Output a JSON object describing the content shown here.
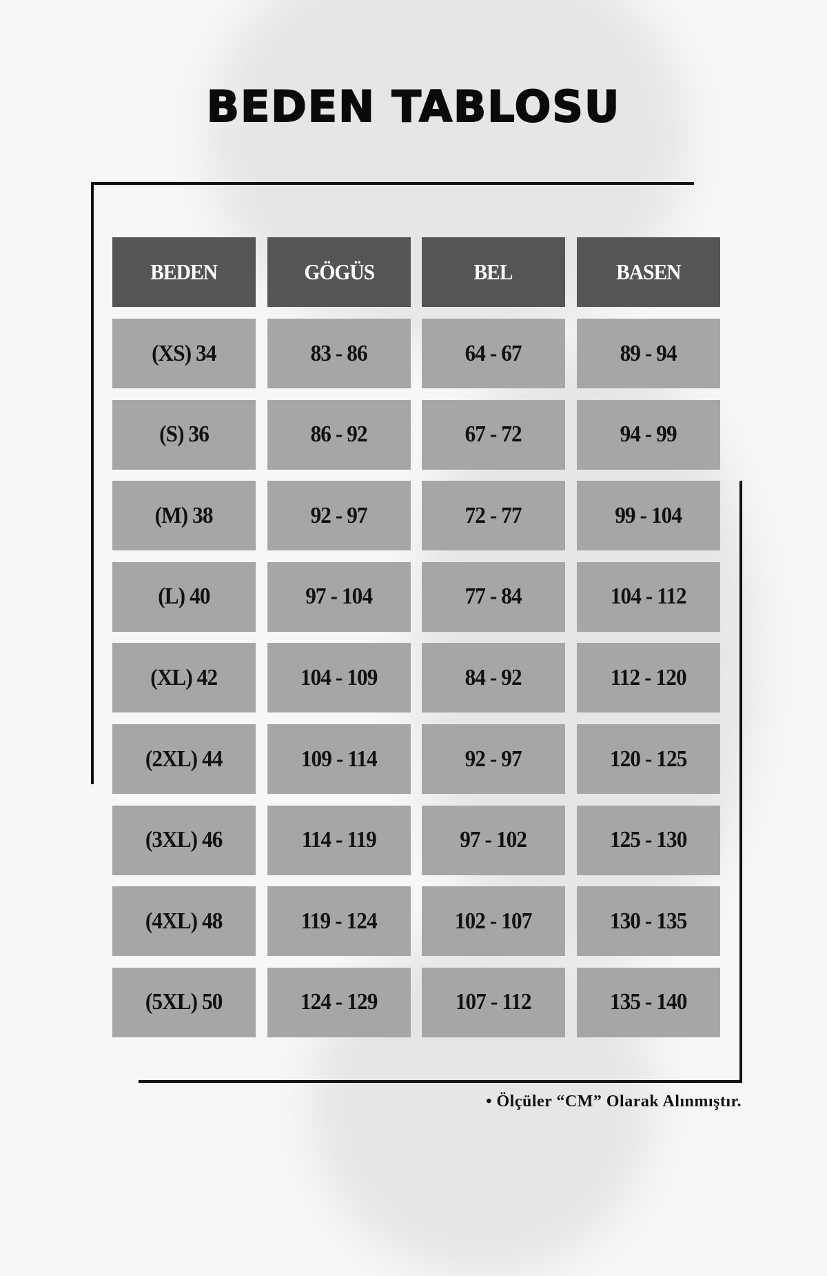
{
  "title": "BEDEN TABLOSU",
  "columns": [
    "BEDEN",
    "GÖGÜS",
    "BEL",
    "BASEN"
  ],
  "rows": [
    [
      "(XS) 34",
      "83 - 86",
      "64 - 67",
      "89 - 94"
    ],
    [
      "(S) 36",
      "86 - 92",
      "67 - 72",
      "94 - 99"
    ],
    [
      "(M) 38",
      "92 - 97",
      "72 - 77",
      "99 - 104"
    ],
    [
      "(L) 40",
      "97 - 104",
      "77 - 84",
      "104 - 112"
    ],
    [
      "(XL) 42",
      "104 - 109",
      "84 - 92",
      "112 - 120"
    ],
    [
      "(2XL) 44",
      "109 - 114",
      "92 - 97",
      "120 - 125"
    ],
    [
      "(3XL) 46",
      "114 - 119",
      "97 - 102",
      "125 - 130"
    ],
    [
      "(4XL) 48",
      "119 - 124",
      "102 - 107",
      "130 - 135"
    ],
    [
      "(5XL) 50",
      "124 - 129",
      "107 - 112",
      "135 - 140"
    ]
  ],
  "note": "• Ölçüler “CM” Olarak Alınmıştır.",
  "colors": {
    "header_bg": "#555555",
    "cell_bg": "#a6a6a6",
    "background": "#f7f7f7"
  }
}
